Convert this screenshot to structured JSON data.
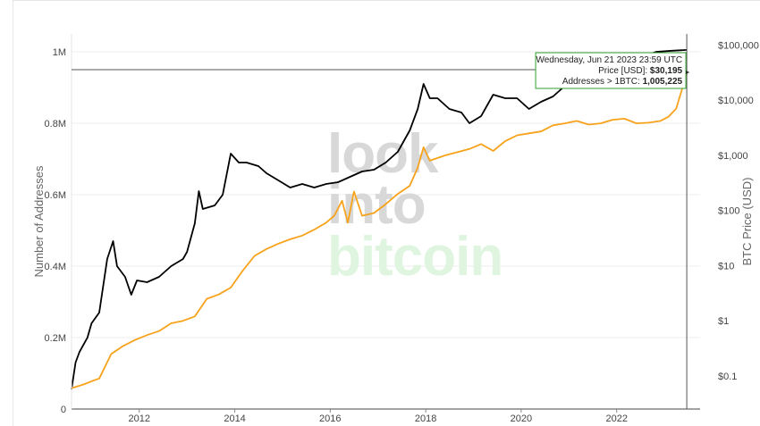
{
  "chart_data": {
    "type": "line",
    "xlabel": "",
    "ylabel_left": "Number of Addresses",
    "ylabel_right": "BTC Price (USD)",
    "x_ticks": [
      "2012",
      "2014",
      "2016",
      "2018",
      "2020",
      "2022"
    ],
    "y_left_ticks": [
      "1M",
      "0.8M",
      "0.6M",
      "0.4M",
      "0.2M",
      "0"
    ],
    "y_left_values": [
      1000000,
      800000,
      600000,
      400000,
      200000,
      0
    ],
    "y_right_ticks": [
      "$100,000",
      "$10,000",
      "$1,000",
      "$100",
      "$10",
      "$1",
      "$0.1"
    ],
    "y_right_values": [
      100000,
      10000,
      1000,
      100,
      10,
      1,
      0.1
    ],
    "y_left_range": [
      0,
      1000000
    ],
    "y_right_log_range": [
      -1.6,
      5.2
    ],
    "x_range": [
      "2010-08-01",
      "2023-10-01"
    ],
    "watermark": [
      "look",
      "into",
      "bitcoin"
    ],
    "series": [
      {
        "name": "Addresses > 1BTC",
        "axis": "left",
        "color": "#000000",
        "points": [
          [
            "2010-08-01",
            55000
          ],
          [
            "2010-09-01",
            130000
          ],
          [
            "2010-10-01",
            160000
          ],
          [
            "2010-12-01",
            200000
          ],
          [
            "2011-01-01",
            240000
          ],
          [
            "2011-03-01",
            270000
          ],
          [
            "2011-05-01",
            420000
          ],
          [
            "2011-06-15",
            470000
          ],
          [
            "2011-07-15",
            400000
          ],
          [
            "2011-09-15",
            370000
          ],
          [
            "2011-11-01",
            320000
          ],
          [
            "2011-12-15",
            360000
          ],
          [
            "2012-03-01",
            355000
          ],
          [
            "2012-06-01",
            370000
          ],
          [
            "2012-09-01",
            400000
          ],
          [
            "2012-12-01",
            420000
          ],
          [
            "2013-01-01",
            440000
          ],
          [
            "2013-03-01",
            520000
          ],
          [
            "2013-04-01",
            610000
          ],
          [
            "2013-05-01",
            560000
          ],
          [
            "2013-08-01",
            570000
          ],
          [
            "2013-10-01",
            600000
          ],
          [
            "2013-12-01",
            715000
          ],
          [
            "2014-02-01",
            690000
          ],
          [
            "2014-04-01",
            690000
          ],
          [
            "2014-07-01",
            680000
          ],
          [
            "2014-09-01",
            660000
          ],
          [
            "2014-12-01",
            640000
          ],
          [
            "2015-03-01",
            620000
          ],
          [
            "2015-06-01",
            630000
          ],
          [
            "2015-09-01",
            620000
          ],
          [
            "2015-12-01",
            630000
          ],
          [
            "2016-03-01",
            635000
          ],
          [
            "2016-06-01",
            650000
          ],
          [
            "2016-09-01",
            665000
          ],
          [
            "2016-12-01",
            670000
          ],
          [
            "2017-03-01",
            690000
          ],
          [
            "2017-06-01",
            720000
          ],
          [
            "2017-09-01",
            780000
          ],
          [
            "2017-11-01",
            840000
          ],
          [
            "2017-12-15",
            910000
          ],
          [
            "2018-02-01",
            870000
          ],
          [
            "2018-04-01",
            870000
          ],
          [
            "2018-07-01",
            840000
          ],
          [
            "2018-10-01",
            830000
          ],
          [
            "2018-12-01",
            800000
          ],
          [
            "2019-03-01",
            820000
          ],
          [
            "2019-06-01",
            880000
          ],
          [
            "2019-09-01",
            870000
          ],
          [
            "2019-12-01",
            870000
          ],
          [
            "2020-03-01",
            840000
          ],
          [
            "2020-06-01",
            860000
          ],
          [
            "2020-09-01",
            875000
          ],
          [
            "2020-11-01",
            895000
          ],
          [
            "2021-02-01",
            930000
          ],
          [
            "2021-05-01",
            940000
          ],
          [
            "2021-08-01",
            955000
          ],
          [
            "2021-11-01",
            950000
          ],
          [
            "2022-03-01",
            970000
          ],
          [
            "2022-07-01",
            985000
          ],
          [
            "2022-11-01",
            1000000
          ],
          [
            "2023-03-01",
            1003000
          ],
          [
            "2023-06-21",
            1005225
          ]
        ]
      },
      {
        "name": "Price [USD]",
        "axis": "right",
        "color": "#f7a21b",
        "points": [
          [
            "2010-08-01",
            0.06
          ],
          [
            "2010-11-01",
            0.07
          ],
          [
            "2011-01-01",
            0.08
          ],
          [
            "2011-03-01",
            0.09
          ],
          [
            "2011-06-01",
            0.25
          ],
          [
            "2011-09-01",
            0.35
          ],
          [
            "2011-12-01",
            0.45
          ],
          [
            "2012-03-01",
            0.55
          ],
          [
            "2012-06-01",
            0.65
          ],
          [
            "2012-09-01",
            0.9
          ],
          [
            "2012-12-01",
            1.0
          ],
          [
            "2013-03-01",
            1.2
          ],
          [
            "2013-06-01",
            2.5
          ],
          [
            "2013-09-01",
            3.0
          ],
          [
            "2013-12-01",
            4.0
          ],
          [
            "2014-03-01",
            8.0
          ],
          [
            "2014-06-01",
            15.0
          ],
          [
            "2014-09-01",
            20.0
          ],
          [
            "2014-12-01",
            25.0
          ],
          [
            "2015-03-01",
            30.0
          ],
          [
            "2015-06-01",
            35.0
          ],
          [
            "2015-09-01",
            45.0
          ],
          [
            "2015-12-01",
            60.0
          ],
          [
            "2016-02-01",
            80.0
          ],
          [
            "2016-04-01",
            150.0
          ],
          [
            "2016-05-15",
            60.0
          ],
          [
            "2016-07-01",
            220.0
          ],
          [
            "2016-09-01",
            80.0
          ],
          [
            "2016-12-01",
            90.0
          ],
          [
            "2017-03-01",
            130.0
          ],
          [
            "2017-06-01",
            200.0
          ],
          [
            "2017-09-01",
            280.0
          ],
          [
            "2017-11-01",
            600.0
          ],
          [
            "2017-12-15",
            1400.0
          ],
          [
            "2018-02-01",
            800.0
          ],
          [
            "2018-06-01",
            1000.0
          ],
          [
            "2018-12-01",
            1300.0
          ],
          [
            "2019-03-01",
            1600.0
          ],
          [
            "2019-06-01",
            1200.0
          ],
          [
            "2019-09-01",
            1800.0
          ],
          [
            "2019-12-01",
            2300.0
          ],
          [
            "2020-03-01",
            2500.0
          ],
          [
            "2020-06-01",
            2700.0
          ],
          [
            "2020-09-01",
            3500.0
          ],
          [
            "2020-12-01",
            3800.0
          ],
          [
            "2021-03-01",
            4200.0
          ],
          [
            "2021-06-01",
            3600.0
          ],
          [
            "2021-09-01",
            3800.0
          ],
          [
            "2021-12-01",
            4400.0
          ],
          [
            "2022-03-01",
            4600.0
          ],
          [
            "2022-06-01",
            3800.0
          ],
          [
            "2022-09-01",
            3900.0
          ],
          [
            "2022-12-01",
            4200.0
          ],
          [
            "2023-02-01",
            5000.0
          ],
          [
            "2023-04-01",
            7000.0
          ],
          [
            "2023-06-21",
            30195.0
          ]
        ]
      }
    ],
    "crosshair": {
      "date": "2023-06-21",
      "left_value": 950000,
      "tooltip": {
        "date_line": "Wednesday, Jun 21 2023 23:59 UTC",
        "price_label": "Price [USD]: ",
        "price_value": "$30,195",
        "addr_label": "Addresses > 1BTC: ",
        "addr_value": "1,005,225"
      }
    },
    "colors": {
      "addresses": "#000000",
      "price": "#f7a21b",
      "tooltip_border": "#2ca02c",
      "watermark_gray": "#d8d8d8",
      "watermark_green": "#dff5df"
    }
  }
}
